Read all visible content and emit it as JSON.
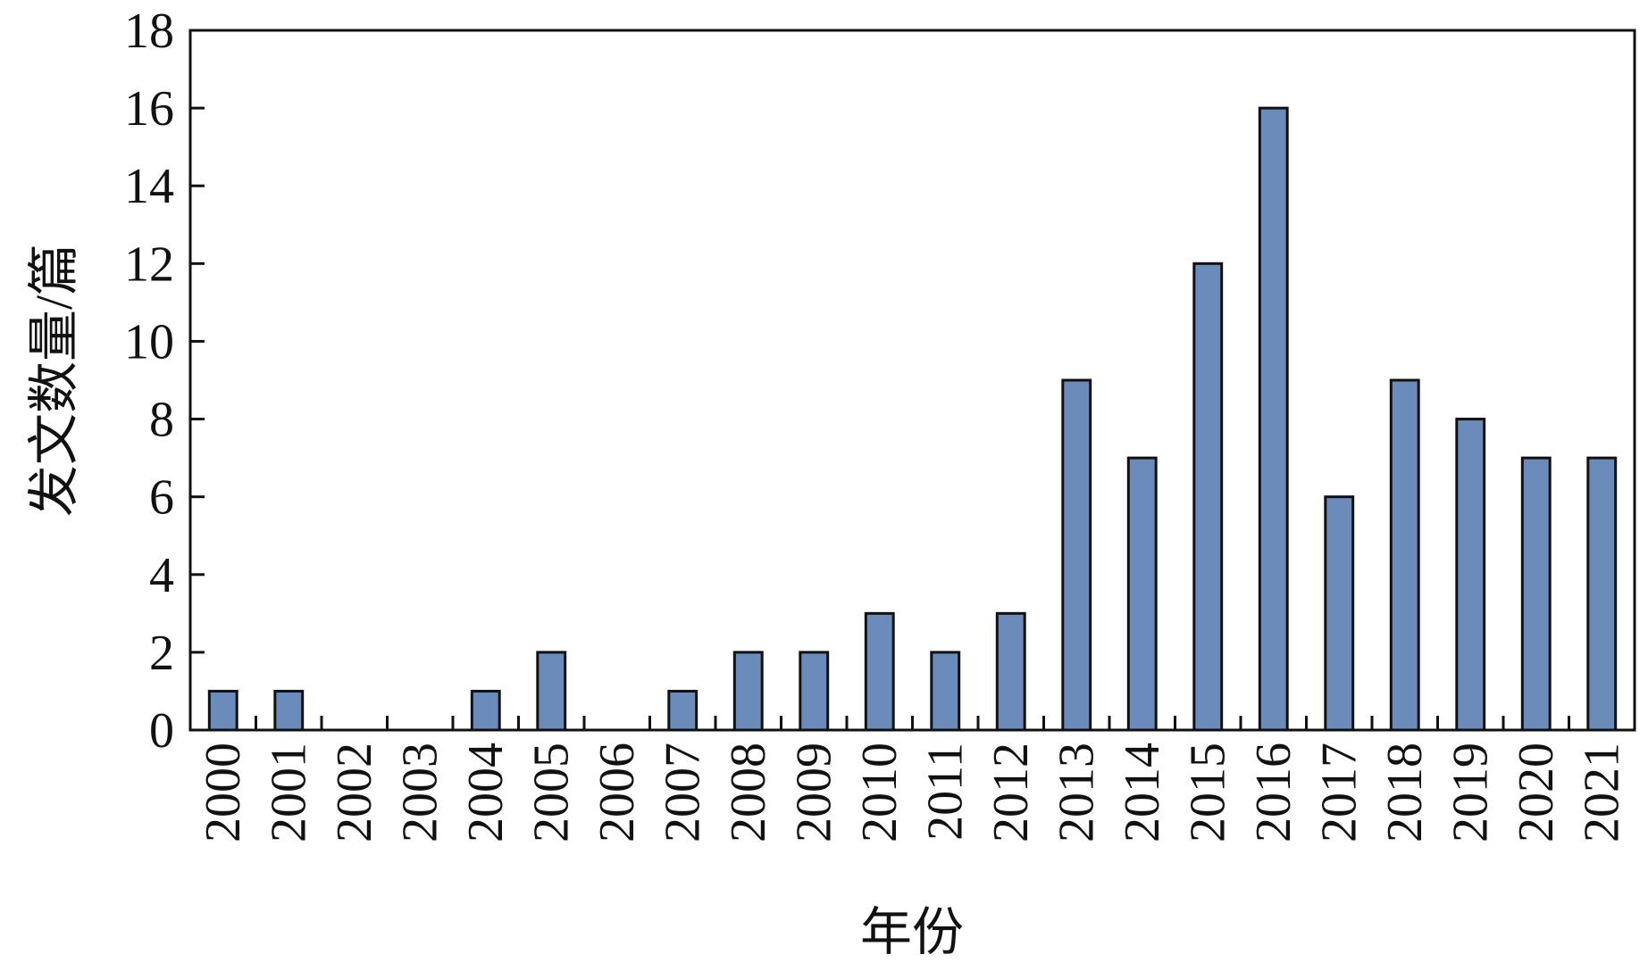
{
  "chart_data": {
    "type": "bar",
    "title": "",
    "xlabel": "年份",
    "ylabel": "发文数量/篇",
    "categories": [
      "2000",
      "2001",
      "2002",
      "2003",
      "2004",
      "2005",
      "2006",
      "2007",
      "2008",
      "2009",
      "2010",
      "2011",
      "2012",
      "2013",
      "2014",
      "2015",
      "2016",
      "2017",
      "2018",
      "2019",
      "2020",
      "2021"
    ],
    "values": [
      1,
      1,
      0,
      0,
      1,
      2,
      0,
      1,
      2,
      2,
      3,
      2,
      3,
      9,
      7,
      12,
      16,
      6,
      9,
      8,
      7,
      7
    ],
    "ylim": [
      0,
      18
    ],
    "yticks": [
      0,
      2,
      4,
      6,
      8,
      10,
      12,
      14,
      16,
      18
    ],
    "grid": false,
    "legend": "none",
    "colors": {
      "bar_fill": "#6b8cba",
      "bar_stroke": "#111111",
      "axis": "#111111"
    }
  }
}
